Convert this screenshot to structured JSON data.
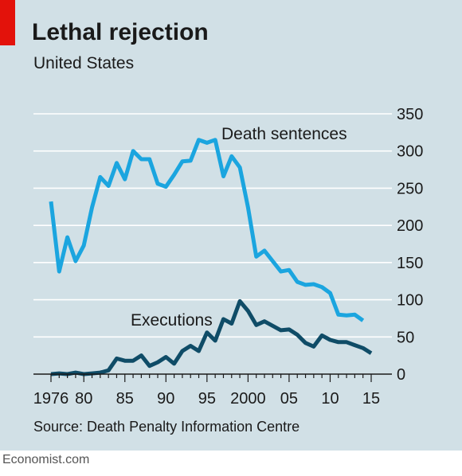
{
  "header": {
    "title": "Lethal rejection",
    "subtitle": "United States"
  },
  "source": "Source: Death Penalty Information Centre",
  "footer": "Economist.com",
  "colors": {
    "background": "#d1e0e6",
    "accent_red": "#e3120b",
    "death_sentences": "#1ba5df",
    "executions": "#0f4c67",
    "gridline": "#ffffff",
    "axis": "#1a1a1a"
  },
  "chart_data": {
    "type": "line",
    "title": "Lethal rejection",
    "subtitle": "United States",
    "xlim": [
      1976,
      2015
    ],
    "ylim": [
      0,
      350
    ],
    "yticks": [
      0,
      50,
      100,
      150,
      200,
      250,
      300,
      350
    ],
    "ytick_labels": [
      "0",
      "50",
      "100",
      "150",
      "200",
      "250",
      "300",
      "350"
    ],
    "xticks": [
      1976,
      1980,
      1985,
      1990,
      1995,
      2000,
      2005,
      2010,
      2015
    ],
    "xtick_labels": [
      "1976",
      "80",
      "85",
      "90",
      "95",
      "2000",
      "05",
      "10",
      "15"
    ],
    "y_axis_side": "right",
    "grid": true,
    "series": [
      {
        "name": "Death sentences",
        "x": [
          1976,
          1977,
          1978,
          1979,
          1980,
          1981,
          1982,
          1983,
          1984,
          1985,
          1986,
          1987,
          1988,
          1989,
          1990,
          1991,
          1992,
          1993,
          1994,
          1995,
          1996,
          1997,
          1998,
          1999,
          2000,
          2001,
          2002,
          2003,
          2004,
          2005,
          2006,
          2007,
          2008,
          2009,
          2010,
          2011,
          2012,
          2013,
          2014
        ],
        "values": [
          232,
          138,
          184,
          152,
          173,
          224,
          265,
          253,
          284,
          262,
          300,
          289,
          289,
          256,
          252,
          268,
          286,
          287,
          315,
          311,
          315,
          266,
          293,
          278,
          224,
          158,
          166,
          152,
          138,
          140,
          124,
          120,
          121,
          117,
          109,
          80,
          79,
          80,
          72
        ]
      },
      {
        "name": "Executions",
        "x": [
          1976,
          1977,
          1978,
          1979,
          1980,
          1981,
          1982,
          1983,
          1984,
          1985,
          1986,
          1987,
          1988,
          1989,
          1990,
          1991,
          1992,
          1993,
          1994,
          1995,
          1996,
          1997,
          1998,
          1999,
          2000,
          2001,
          2002,
          2003,
          2004,
          2005,
          2006,
          2007,
          2008,
          2009,
          2010,
          2011,
          2012,
          2013,
          2014,
          2015
        ],
        "values": [
          0,
          1,
          0,
          2,
          0,
          1,
          2,
          5,
          21,
          18,
          18,
          25,
          11,
          16,
          23,
          14,
          31,
          38,
          31,
          56,
          45,
          74,
          68,
          98,
          85,
          66,
          71,
          65,
          59,
          60,
          53,
          42,
          37,
          52,
          46,
          43,
          43,
          39,
          35,
          28
        ]
      }
    ]
  }
}
